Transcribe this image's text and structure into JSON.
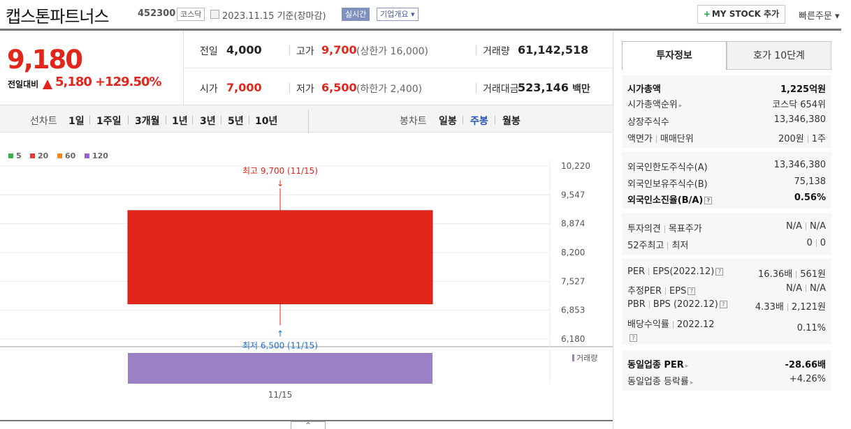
{
  "header": {
    "company": "캡스톤파트너스",
    "code": "452300",
    "market": "코스닥",
    "date": "2023.11.15",
    "basis": "기준(장마감)",
    "realtime": "실시간",
    "company_summary": "기업개요 ▾",
    "my_stock_plus": "+",
    "my_stock": "MY STOCK 추가",
    "quick_order": "빠른주문 ▾"
  },
  "price": {
    "current": "9,180",
    "change_label": "전일대비",
    "change": "5,180",
    "change_pct": "+129.50%"
  },
  "stats": {
    "prev_close_label": "전일",
    "prev_close": "4,000",
    "high_label": "고가",
    "high": "9,700",
    "upper_limit": "(상한가 16,000)",
    "volume_label": "거래량",
    "volume": "61,142,518",
    "open_label": "시가",
    "open": "7,000",
    "low_label": "저가",
    "low": "6,500",
    "lower_limit": "(하한가 2,400)",
    "amount_label": "거래대금",
    "amount": "523,146",
    "amount_unit": "백만"
  },
  "periods": {
    "line_label": "선차트",
    "line_items": [
      "1일",
      "1주일",
      "3개월",
      "1년",
      "3년",
      "5년",
      "10년"
    ],
    "candle_label": "봉차트",
    "candle_items": [
      "일봉",
      "주봉",
      "월봉"
    ],
    "candle_selected": "주봉"
  },
  "chart_data": {
    "type": "candlestick",
    "legend": [
      {
        "label": "5",
        "color": "#3cb24a"
      },
      {
        "label": "20",
        "color": "#e33b3b"
      },
      {
        "label": "60",
        "color": "#f28a1d"
      },
      {
        "label": "120",
        "color": "#9a5fcf"
      }
    ],
    "candles": [
      {
        "date": "11/15",
        "open": 7000,
        "high": 9700,
        "low": 6500,
        "close": 9180
      }
    ],
    "y_ticks": [
      "10,220",
      "9,547",
      "8,874",
      "8,200",
      "7,527",
      "6,853",
      "6,180"
    ],
    "ylim": [
      6180,
      10220
    ],
    "x_ticks": [
      "11/15"
    ],
    "high_annotation": "최고 9,700 (11/15)",
    "low_annotation": "최저 6,500 (11/15)",
    "volume_label": "거래량",
    "colors": {
      "up": "#e1261c",
      "volume": "#9b80c6"
    }
  },
  "info": {
    "tabs": [
      "투자정보",
      "호가 10단계"
    ],
    "market_cap_label": "시가총액",
    "market_cap": "1,225억원",
    "market_cap_rank_label": "시가총액순위",
    "market_cap_rank": "코스닥 654위",
    "listed_shares_label": "상장주식수",
    "listed_shares": "13,346,380",
    "face_value_label": "액면가",
    "trade_unit_label": "매매단위",
    "face_value": "200원",
    "trade_unit": "1주",
    "foreign_limit_label": "외국인한도주식수(A)",
    "foreign_limit": "13,346,380",
    "foreign_hold_label": "외국인보유주식수(B)",
    "foreign_hold": "75,138",
    "foreign_ratio_label": "외국인소진율(B/A)",
    "foreign_ratio": "0.56%",
    "opinion_label": "투자의견",
    "target_label": "목표주가",
    "opinion": "N/A",
    "target": "N/A",
    "w52_high_label": "52주최고",
    "w52_low_label": "최저",
    "w52_high": "0",
    "w52_low": "0",
    "per_label": "PER",
    "eps_label": "EPS(2022.12)",
    "per": "16.36배",
    "eps": "561원",
    "est_per_label": "추정PER",
    "est_eps_label": "EPS",
    "est_per": "N/A",
    "est_eps": "N/A",
    "pbr_label": "PBR",
    "bps_label": "BPS (2022.12)",
    "pbr": "4.33배",
    "bps": "2,121원",
    "div_label": "배당수익률",
    "div_year": "2022.12",
    "div": "0.11%",
    "ind_per_label": "동일업종 PER",
    "ind_per": "-28.66배",
    "ind_change_label": "동일업종 등락률",
    "ind_change": "+4.26%",
    "help_mark": "?"
  },
  "footer": {
    "collapse": "^"
  }
}
